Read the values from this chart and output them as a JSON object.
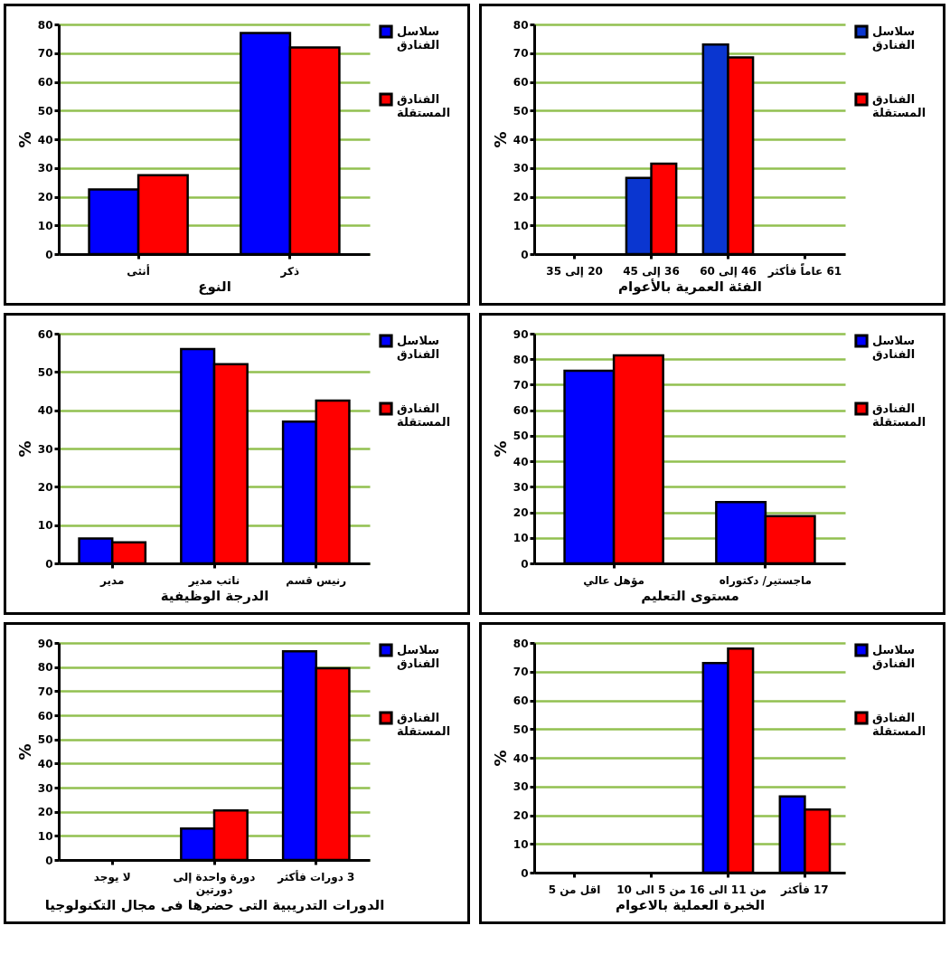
{
  "chart_data": [
    {
      "type": "bar",
      "xlabel": "النوع",
      "ylabel": "%",
      "categories": [
        "أنثى",
        "ذكر"
      ],
      "series": [
        {
          "name": "سلاسل الفنادق",
          "color": "#0000ff",
          "values": [
            22.5,
            77
          ]
        },
        {
          "name": "الفنادق المستقلة",
          "color": "#ff0000",
          "values": [
            27.5,
            72
          ]
        }
      ],
      "ylim": [
        0,
        80
      ],
      "yticks": [
        0,
        10,
        20,
        30,
        40,
        50,
        60,
        70,
        80
      ],
      "grid": "y",
      "legend": "right"
    },
    {
      "type": "bar",
      "xlabel": "الفئة العمرية بالأعوام",
      "ylabel": "%",
      "categories": [
        "20 إلى 35",
        "36 إلى 45",
        "46 إلى 60",
        "61 عاماً فأكثر"
      ],
      "series": [
        {
          "name": "سلاسل الفنادق",
          "color": "#0a36d0",
          "values": [
            0,
            26.5,
            73,
            0
          ]
        },
        {
          "name": "الفنادق المستقلة",
          "color": "#ff0000",
          "values": [
            0,
            31.5,
            68.5,
            0
          ]
        }
      ],
      "ylim": [
        0,
        80
      ],
      "yticks": [
        0,
        10,
        20,
        30,
        40,
        50,
        60,
        70,
        80
      ],
      "grid": "y",
      "legend": "right"
    },
    {
      "type": "bar",
      "xlabel": "الدرجة الوظيفية",
      "ylabel": "%",
      "categories": [
        "مدير",
        "ناتب مدير",
        "رنيس قسم"
      ],
      "series": [
        {
          "name": "سلاسل الفنادق",
          "color": "#0000ff",
          "values": [
            6.5,
            56,
            37
          ]
        },
        {
          "name": "الفنادق المستقلة",
          "color": "#ff0000",
          "values": [
            5.5,
            52,
            42.5
          ]
        }
      ],
      "ylim": [
        0,
        60
      ],
      "yticks": [
        0,
        10,
        20,
        30,
        40,
        50,
        60
      ],
      "grid": "y",
      "legend": "right"
    },
    {
      "type": "bar",
      "xlabel": "مستوى التعليم",
      "ylabel": "%",
      "categories": [
        "مؤهل عالي",
        "ماجستير/ دكتوراه"
      ],
      "series": [
        {
          "name": "سلاسل الفنادق",
          "color": "#0000ff",
          "values": [
            75.5,
            24
          ]
        },
        {
          "name": "الفنادق المستقلة",
          "color": "#ff0000",
          "values": [
            81.5,
            18.5
          ]
        }
      ],
      "ylim": [
        0,
        90
      ],
      "yticks": [
        0,
        10,
        20,
        30,
        40,
        50,
        60,
        70,
        80,
        90
      ],
      "grid": "y",
      "legend": "right"
    },
    {
      "type": "bar",
      "xlabel": "الدورات التدريبية التى حضرها فى مجال التكنولوجيا",
      "ylabel": "%",
      "categories": [
        "لا يوجد",
        "دورة واحدة إلى دورتين",
        "3 دورات فأكثر"
      ],
      "series": [
        {
          "name": "سلاسل الفنادق",
          "color": "#0000ff",
          "values": [
            0,
            13,
            86.5
          ]
        },
        {
          "name": "الفنادق المستقلة",
          "color": "#ff0000",
          "values": [
            0,
            20.5,
            79.5
          ]
        }
      ],
      "ylim": [
        0,
        90
      ],
      "yticks": [
        0,
        10,
        20,
        30,
        40,
        50,
        60,
        70,
        80,
        90
      ],
      "grid": "y",
      "legend": "right"
    },
    {
      "type": "bar",
      "xlabel": "الخبرة العملية بالاعوام",
      "ylabel": "%",
      "categories": [
        "اقل من 5",
        "من 5 الى 10",
        "من 11 الى 16",
        "17  فأكثر"
      ],
      "series": [
        {
          "name": "سلاسل الفنادق",
          "color": "#0000ff",
          "values": [
            0,
            0,
            73,
            26.5
          ]
        },
        {
          "name": "الفنادق المستقلة",
          "color": "#ff0000",
          "values": [
            0,
            0,
            78,
            22
          ]
        }
      ],
      "ylim": [
        0,
        80
      ],
      "yticks": [
        0,
        10,
        20,
        30,
        40,
        50,
        60,
        70,
        80
      ],
      "grid": "y",
      "legend": "right"
    }
  ]
}
